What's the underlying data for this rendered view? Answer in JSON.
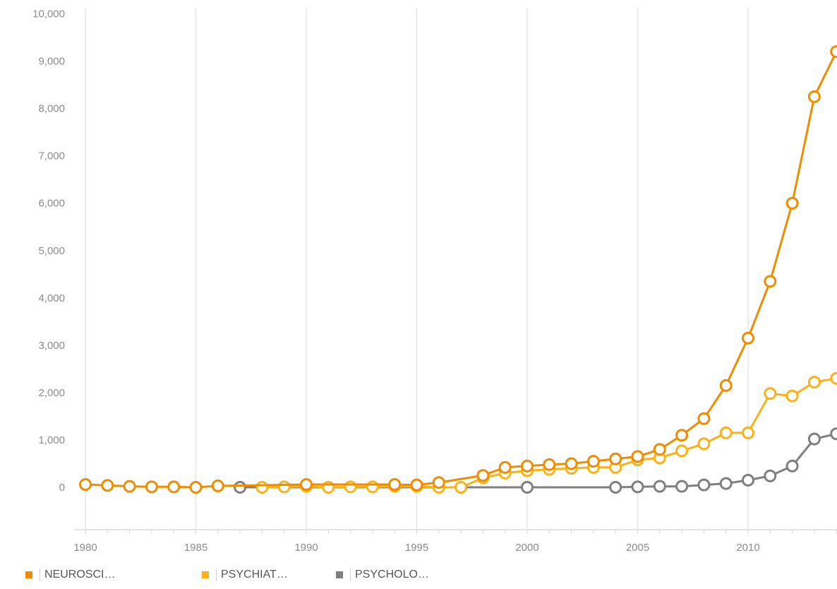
{
  "chart_data": {
    "type": "line",
    "x": [
      1980,
      1981,
      1982,
      1983,
      1984,
      1985,
      1986,
      1987,
      1988,
      1989,
      1990,
      1991,
      1992,
      1993,
      1994,
      1995,
      1996,
      1997,
      1998,
      1999,
      2000,
      2001,
      2002,
      2003,
      2004,
      2005,
      2006,
      2007,
      2008,
      2009,
      2010,
      2011,
      2012,
      2013,
      2014
    ],
    "series": [
      {
        "name": "NEUROSCI…",
        "color": "#f08c00",
        "values": [
          60,
          40,
          20,
          10,
          10,
          0,
          30,
          null,
          null,
          null,
          60,
          null,
          null,
          null,
          60,
          50,
          100,
          null,
          250,
          420,
          450,
          480,
          500,
          550,
          600,
          650,
          800,
          1100,
          1450,
          2150,
          3150,
          4350,
          6000,
          8250,
          9200
        ]
      },
      {
        "name": "PSYCHIAT…",
        "color": "#fbb117",
        "values": [
          null,
          null,
          null,
          null,
          null,
          null,
          null,
          null,
          0,
          10,
          20,
          0,
          10,
          10,
          20,
          20,
          0,
          0,
          200,
          300,
          350,
          380,
          400,
          420,
          420,
          580,
          620,
          770,
          920,
          1150,
          1150,
          1980,
          1930,
          2220,
          2300
        ]
      },
      {
        "name": "PSYCHOLO…",
        "color": "#7f7f7f",
        "values": [
          null,
          null,
          null,
          null,
          null,
          null,
          null,
          0,
          null,
          null,
          null,
          null,
          null,
          null,
          null,
          null,
          null,
          null,
          null,
          null,
          0,
          null,
          null,
          null,
          0,
          10,
          20,
          20,
          50,
          80,
          150,
          240,
          450,
          1020,
          1130
        ]
      }
    ],
    "x_ticks": [
      "1980",
      "1985",
      "1990",
      "1995",
      "2000",
      "2005",
      "2010"
    ],
    "y_ticks": [
      "0",
      "1,000",
      "2,000",
      "3,000",
      "4,000",
      "5,000",
      "6,000",
      "7,000",
      "8,000",
      "9,000",
      "10,000"
    ],
    "ylim": [
      0,
      10000
    ],
    "grid": "vertical",
    "legend_position": "bottom-left"
  }
}
